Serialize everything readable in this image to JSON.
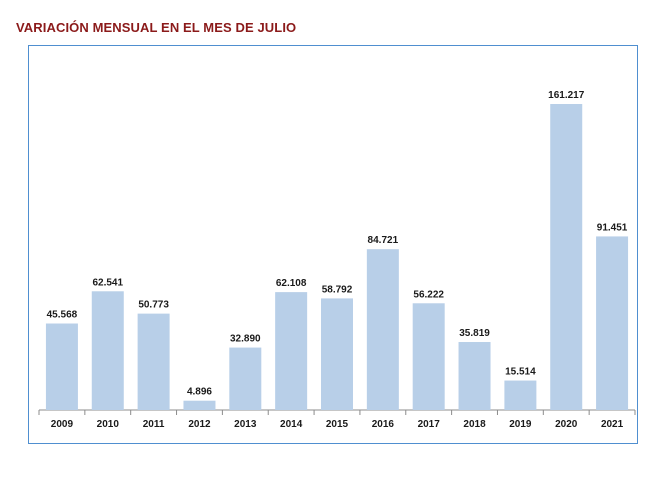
{
  "title": "VARIACIÓN MENSUAL EN EL MES DE JULIO",
  "chart_data": {
    "type": "bar",
    "title": "VARIACIÓN MENSUAL EN EL MES DE JULIO",
    "categories": [
      "2009",
      "2010",
      "2011",
      "2012",
      "2013",
      "2014",
      "2015",
      "2016",
      "2017",
      "2018",
      "2019",
      "2020",
      "2021"
    ],
    "values": [
      45568,
      62541,
      50773,
      4896,
      32890,
      62108,
      58792,
      84721,
      56222,
      35819,
      15514,
      161217,
      91451
    ],
    "value_labels": [
      "45.568",
      "62.541",
      "50.773",
      "4.896",
      "32.890",
      "62.108",
      "58.792",
      "84.721",
      "56.222",
      "35.819",
      "15.514",
      "161.217",
      "91.451"
    ],
    "xlabel": "",
    "ylabel": "",
    "ylim": [
      0,
      161217
    ],
    "grid": false,
    "legend": "none",
    "bar_color": "#b8cfe8",
    "frame_color": "#4f8fd0",
    "title_color": "#8b1a1a"
  }
}
